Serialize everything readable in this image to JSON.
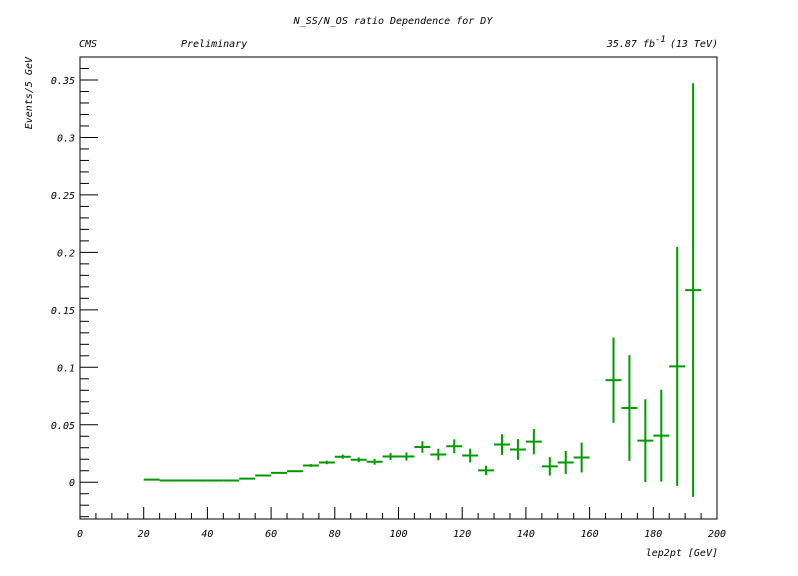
{
  "chart_data": {
    "type": "scatter",
    "title": "N_SS/N_OS ratio Dependence for DY",
    "top_left_label": "CMS",
    "top_mid_label": "Preliminary",
    "lumi_value": "35.87 fb",
    "lumi_exponent": "-1",
    "lumi_energy": "(13 TeV)",
    "xlabel": "lep2pt [GeV]",
    "ylabel": "Events/5 GeV",
    "xlim": [
      0,
      200
    ],
    "ylim": [
      -0.032,
      0.37
    ],
    "x_ticks": [
      0,
      20,
      40,
      60,
      80,
      100,
      120,
      140,
      160,
      180,
      200
    ],
    "x_tick_labels": [
      "0",
      "20",
      "40",
      "60",
      "80",
      "100",
      "120",
      "140",
      "160",
      "180",
      "200"
    ],
    "y_ticks": [
      0,
      0.05,
      0.1,
      0.15,
      0.2,
      0.25,
      0.3,
      0.35
    ],
    "y_tick_labels": [
      "0",
      "0.05",
      "0.1",
      "0.15",
      "0.2",
      "0.25",
      "0.3",
      "0.35"
    ],
    "grid": false,
    "legend": "none",
    "series_color": "#009900",
    "points": [
      {
        "x": 22.5,
        "y": 0.0023,
        "err": 0.0002
      },
      {
        "x": 27.5,
        "y": 0.0015,
        "err": 0.0002
      },
      {
        "x": 32.5,
        "y": 0.0015,
        "err": 0.0002
      },
      {
        "x": 37.5,
        "y": 0.0015,
        "err": 0.0002
      },
      {
        "x": 42.5,
        "y": 0.0015,
        "err": 0.0002
      },
      {
        "x": 47.5,
        "y": 0.0015,
        "err": 0.0002
      },
      {
        "x": 52.5,
        "y": 0.0031,
        "err": 0.0003
      },
      {
        "x": 57.5,
        "y": 0.0059,
        "err": 0.0004
      },
      {
        "x": 62.5,
        "y": 0.0081,
        "err": 0.0005
      },
      {
        "x": 67.5,
        "y": 0.0096,
        "err": 0.0007
      },
      {
        "x": 72.5,
        "y": 0.0146,
        "err": 0.0012
      },
      {
        "x": 77.5,
        "y": 0.0172,
        "err": 0.0015
      },
      {
        "x": 82.5,
        "y": 0.0222,
        "err": 0.0018
      },
      {
        "x": 87.5,
        "y": 0.0196,
        "err": 0.002
      },
      {
        "x": 92.5,
        "y": 0.0178,
        "err": 0.0025
      },
      {
        "x": 97.5,
        "y": 0.0224,
        "err": 0.003
      },
      {
        "x": 102.5,
        "y": 0.0224,
        "err": 0.0035
      },
      {
        "x": 107.5,
        "y": 0.0306,
        "err": 0.005
      },
      {
        "x": 112.5,
        "y": 0.0241,
        "err": 0.005
      },
      {
        "x": 117.5,
        "y": 0.0313,
        "err": 0.006
      },
      {
        "x": 122.5,
        "y": 0.0232,
        "err": 0.006
      },
      {
        "x": 127.5,
        "y": 0.0103,
        "err": 0.004
      },
      {
        "x": 132.5,
        "y": 0.0328,
        "err": 0.009
      },
      {
        "x": 137.5,
        "y": 0.0285,
        "err": 0.009
      },
      {
        "x": 142.5,
        "y": 0.0353,
        "err": 0.011
      },
      {
        "x": 147.5,
        "y": 0.0138,
        "err": 0.008
      },
      {
        "x": 152.5,
        "y": 0.0172,
        "err": 0.01
      },
      {
        "x": 157.5,
        "y": 0.0215,
        "err": 0.013
      },
      {
        "x": 167.5,
        "y": 0.0888,
        "err": 0.037
      },
      {
        "x": 172.5,
        "y": 0.0646,
        "err": 0.046
      },
      {
        "x": 177.5,
        "y": 0.0362,
        "err": 0.036
      },
      {
        "x": 182.5,
        "y": 0.0405,
        "err": 0.04
      },
      {
        "x": 187.5,
        "y": 0.1008,
        "err": 0.104
      },
      {
        "x": 192.5,
        "y": 0.1672,
        "err": 0.18
      }
    ],
    "x_half_width": 2.5
  }
}
